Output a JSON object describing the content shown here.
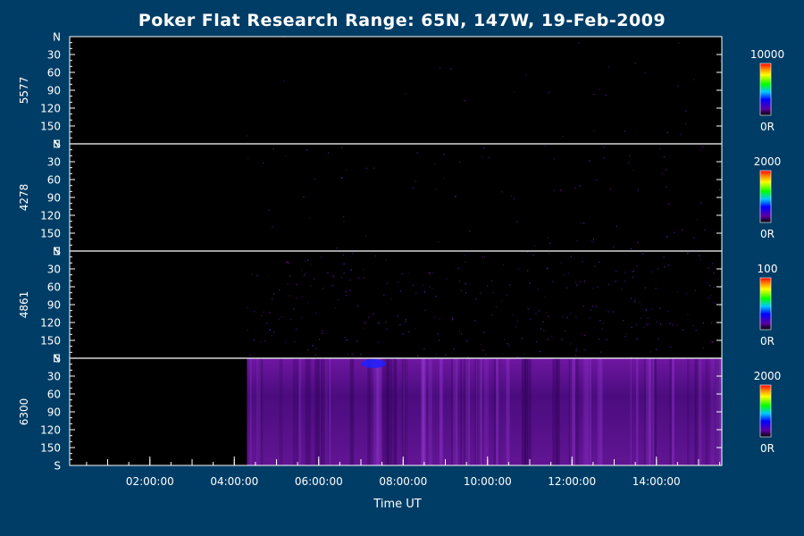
{
  "chart_data": {
    "type": "heatmap",
    "title": "Poker Flat Research Range: 65N, 147W, 19-Feb-2009",
    "xlabel": "Time UT",
    "x_tick_labels": [
      "02:00:00",
      "04:00:00",
      "06:00:00",
      "08:00:00",
      "10:00:00",
      "12:00:00",
      "14:00:00"
    ],
    "x_tick_hours": [
      2,
      4,
      6,
      8,
      10,
      12,
      14
    ],
    "x_range_hours": [
      0.1,
      15.55
    ],
    "data_start_hour": 4.3,
    "y_tick_labels": [
      "N",
      "30",
      "60",
      "90",
      "120",
      "150",
      "S"
    ],
    "y_tick_values": [
      0,
      30,
      60,
      90,
      120,
      150,
      180
    ],
    "y_range": [
      0,
      180
    ],
    "panels": [
      {
        "wavelength": "5577",
        "scale_max_label": "10000",
        "scale_min_label": "0R",
        "scale_max": 10000,
        "intensity": 0.02
      },
      {
        "wavelength": "4278",
        "scale_max_label": "2000",
        "scale_min_label": "0R",
        "scale_max": 2000,
        "intensity": 0.06
      },
      {
        "wavelength": "4861",
        "scale_max_label": "100",
        "scale_min_label": "0R",
        "scale_max": 100,
        "intensity": 0.22
      },
      {
        "wavelength": "6300",
        "scale_max_label": "2000",
        "scale_min_label": "0R",
        "scale_max": 2000,
        "intensity": 0.5
      }
    ]
  }
}
